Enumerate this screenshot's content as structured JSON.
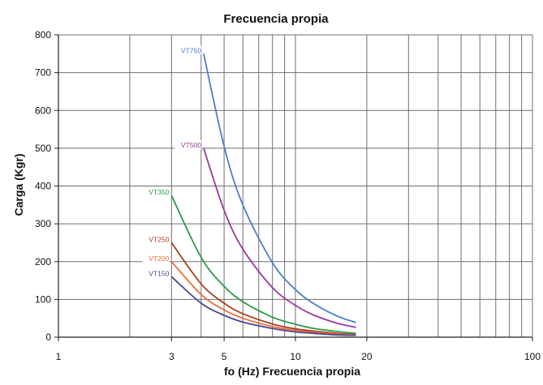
{
  "chart_data": {
    "type": "line",
    "title": "Frecuencia propia",
    "xlabel": "fo (Hz) Frecuencia propia",
    "ylabel": "Carga (Kgr)",
    "x_scale": "log",
    "xlim": [
      1,
      100
    ],
    "ylim": [
      0,
      800
    ],
    "x_ticks": [
      1,
      3,
      5,
      10,
      20,
      100
    ],
    "y_ticks": [
      0,
      100,
      200,
      300,
      400,
      500,
      600,
      700,
      800
    ],
    "grid": true,
    "legend": "inline labels at curve starts",
    "series": [
      {
        "name": "VT750",
        "color": "#4a7fc8",
        "x": [
          4.1,
          5,
          6,
          8,
          10,
          12,
          15,
          18
        ],
        "y": [
          750,
          505,
          350,
          197,
          126,
          88,
          56,
          39
        ]
      },
      {
        "name": "VT500",
        "color": "#9b3a9b",
        "x": [
          4.1,
          5,
          6,
          8,
          10,
          12,
          15,
          18
        ],
        "y": [
          500,
          336,
          233,
          131,
          84,
          58,
          37,
          26
        ]
      },
      {
        "name": "VT350",
        "color": "#2e9a4a",
        "x": [
          3,
          4,
          5,
          6,
          8,
          10,
          12,
          15,
          18
        ],
        "y": [
          375,
          211,
          135,
          94,
          53,
          34,
          23,
          15,
          10
        ]
      },
      {
        "name": "VT250",
        "color": "#a5411f",
        "x": [
          3,
          4,
          5,
          6,
          8,
          10,
          12,
          15,
          18
        ],
        "y": [
          250,
          141,
          90,
          62,
          35,
          22,
          16,
          10,
          7
        ]
      },
      {
        "name": "VT200",
        "color": "#ef6b3a",
        "x": [
          3,
          4,
          5,
          6,
          8,
          10,
          12,
          15,
          18
        ],
        "y": [
          200,
          113,
          72,
          50,
          28,
          18,
          13,
          8,
          6
        ]
      },
      {
        "name": "VT150",
        "color": "#4b4590",
        "x": [
          3,
          4,
          5,
          6,
          8,
          10,
          12,
          15,
          18
        ],
        "y": [
          160,
          90,
          58,
          40,
          23,
          14,
          10,
          6,
          5
        ]
      }
    ]
  }
}
